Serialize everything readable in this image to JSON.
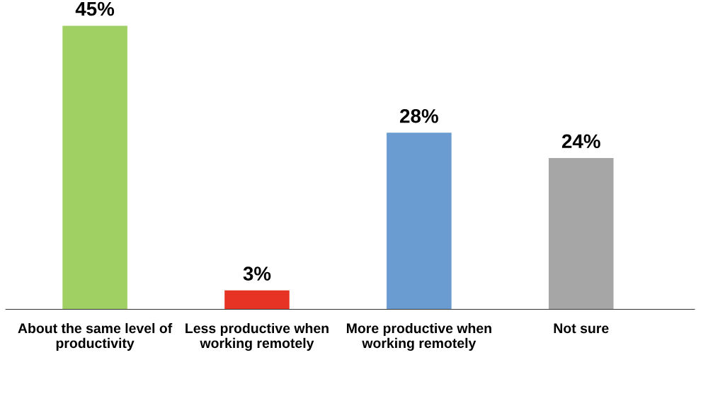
{
  "chart_data": {
    "type": "bar",
    "categories": [
      "About the same level of\nproductivity",
      "Less productive when\nworking remotely",
      "More productive when\nworking remotely",
      "Not sure"
    ],
    "values": [
      45,
      3,
      28,
      24
    ],
    "colors": [
      "#a0cf63",
      "#e63323",
      "#6a9bd1",
      "#a6a6a6"
    ],
    "value_labels": [
      "45%",
      "3%",
      "28%",
      "24%"
    ],
    "grid": false,
    "legend": false
  }
}
